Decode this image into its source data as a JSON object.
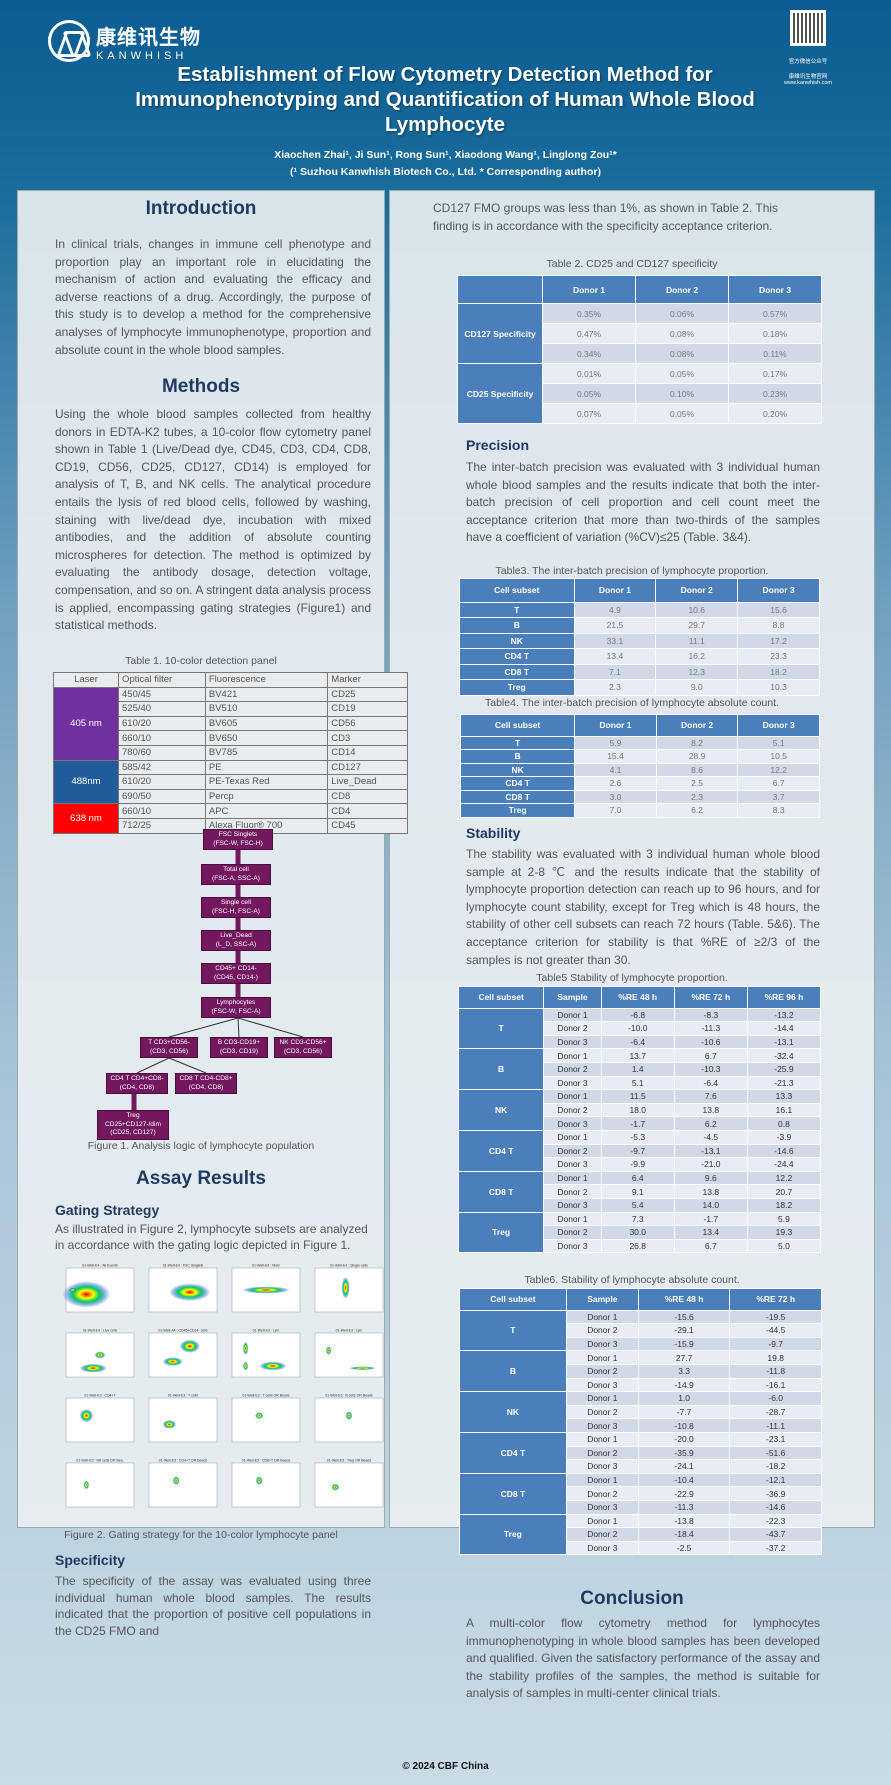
{
  "header": {
    "logo_cn": "康维讯生物",
    "logo_en": "KANWHISH",
    "qr_label1": "官方微信公众号",
    "qr_label2": "康维讯生物官网",
    "qr_url": "www.kanwhish.com",
    "title": "Establishment of Flow Cytometry Detection Method for Immunophenotyping and Quantification of Human Whole Blood Lymphocyte",
    "authors": "Xiaochen Zhai¹, Ji Sun¹, Rong Sun¹, Xiaodong Wang¹, Linglong Zou¹*",
    "affiliation": "(¹ Suzhou Kanwhish Biotech Co., Ltd. * Corresponding author)"
  },
  "intro": {
    "heading": "Introduction",
    "text": "In clinical trials, changes in immune cell phenotype and proportion play an important role in elucidating the mechanism of action and evaluating the efficacy and adverse reactions of a drug. Accordingly, the purpose of this study is to develop a method for the comprehensive analyses of lymphocyte immunophenotype, proportion and absolute count in the whole blood samples."
  },
  "methods": {
    "heading": "Methods",
    "text": "Using the whole blood samples collected from healthy donors in EDTA-K2 tubes, a 10-color flow cytometry panel shown in Table 1 (Live/Dead dye, CD45, CD3, CD4, CD8, CD19, CD56, CD25, CD127, CD14) is employed for analysis of T, B, and NK cells. The analytical procedure entails the lysis of red blood cells, followed by washing, staining with live/dead dye, incubation with mixed antibodies, and the addition of absolute counting microspheres for detection. The method is optimized by evaluating the antibody dosage, detection voltage, compensation, and so on. A stringent data analysis process is applied, encompassing gating strategies (Figure1) and statistical methods."
  },
  "table1": {
    "caption": "Table 1. 10-color detection panel",
    "headers": [
      "Laser",
      "Optical filter",
      "Fluorescence",
      "Marker"
    ],
    "groups": [
      {
        "laser": "405 nm",
        "color": "#7030a0",
        "rows": [
          [
            "450/45",
            "BV421",
            "CD25"
          ],
          [
            "525/40",
            "BV510",
            "CD19"
          ],
          [
            "610/20",
            "BV605",
            "CD56"
          ],
          [
            "660/10",
            "BV650",
            "CD3"
          ],
          [
            "780/60",
            "BV785",
            "CD14"
          ]
        ]
      },
      {
        "laser": "488nm",
        "color": "#1f5c99",
        "rows": [
          [
            "585/42",
            "PE",
            "CD127"
          ],
          [
            "610/20",
            "PE-Texas Red",
            "Live_Dead"
          ],
          [
            "690/50",
            "Percp",
            "CD8"
          ]
        ]
      },
      {
        "laser": "638 nm",
        "color": "#ff0000",
        "rows": [
          [
            "660/10",
            "APC",
            "CD4"
          ],
          [
            "712/25",
            "Alexa Fluor® 700",
            "CD45"
          ]
        ]
      }
    ]
  },
  "flowchart": {
    "nodes": [
      "FSC Singlets\n(FSC-W, FSC-H)",
      "Total cell\n(FSC-A, SSC-A)",
      "Single cell\n(FSC-H, FSC-A)",
      "Live_Dead\n(L_D, SSC-A)",
      "CD45+ CD14-\n(CD45, CD14-)",
      "Lymphocytes\n(FSC-W, FSC-A)",
      "T CD3+CD56-\n(CD3, CD56)",
      "B CD3-CD19+\n(CD3, CD19)",
      "NK CD3-CD56+\n(CD3, CD56)",
      "CD4 T CD4+CD8-\n(CD4, CD8)",
      "CD8 T CD4-CD8+\n(CD4, CD8)",
      "Treg CD25+CD127-/dim\n(CD25, CD127)"
    ],
    "caption": "Figure 1. Analysis logic of lymphocyte population"
  },
  "results": {
    "heading": "Assay Results",
    "gating_heading": "Gating Strategy",
    "gating_text": "As illustrated in Figure 2, lymphocyte subsets are analyzed in accordance with the gating logic depicted in Figure 1.",
    "figure2_caption": "Figure 2. Gating strategy for the 10-color lymphocyte panel",
    "figure2_panels": [
      "01-Well-E4 : All Events",
      "01-Well-E4 : FSC Singlets",
      "01-Well-E4 : Main",
      "01-Well-E4 : Single cells",
      "01-Well-E4 : Live cells",
      "01-Well-A4 : CD45+CD14- cells",
      "01-Well-E3 : Lym",
      "01-Well-E3 : Lym",
      "01-Well-E3 : CD4+T",
      "01-Well-E3 : T cells",
      "01-Well-E3 : T cells OR Beads",
      "01-Well-E3 : B cells OR Beads",
      "01-Well-E3 : NK cells OR Bea.",
      "01-Well-E3 : CD4+T OR Beads",
      "01-Well-E3 : CD8+T OR Beads",
      "01-Well-E3 : Treg OR Beads"
    ],
    "specificity_heading": "Specificity",
    "specificity_text": "The specificity of the assay was evaluated using three individual human whole blood samples. The results indicated that the proportion of positive cell populations in the CD25 FMO and",
    "specificity_cont": "CD127 FMO groups was less than 1%, as shown in Table 2. This finding is in accordance with the specificity acceptance criterion."
  },
  "table2": {
    "caption": "Table 2. CD25 and CD127 specificity",
    "headers": [
      "",
      "Donor 1",
      "Donor 2",
      "Donor 3"
    ],
    "groups": [
      {
        "label": "CD127 Specificity",
        "rows": [
          [
            "0.35%",
            "0.06%",
            "0.57%"
          ],
          [
            "0.47%",
            "0.08%",
            "0.18%"
          ],
          [
            "0.34%",
            "0.08%",
            "0.11%"
          ]
        ]
      },
      {
        "label": "CD25 Specificity",
        "rows": [
          [
            "0.01%",
            "0.05%",
            "0.17%"
          ],
          [
            "0.05%",
            "0.10%",
            "0.23%"
          ],
          [
            "0.07%",
            "0.05%",
            "0.20%"
          ]
        ]
      }
    ]
  },
  "precision": {
    "heading": "Precision",
    "text": "The inter-batch precision was evaluated with 3 individual human whole blood samples and the results indicate that both the inter-batch precision of cell proportion and cell count meet the acceptance criterion that more than two-thirds of the samples have a coefficient of variation (%CV)≤25 (Table. 3&4)."
  },
  "table3": {
    "caption": "Table3. The inter-batch precision of lymphocyte proportion.",
    "headers": [
      "Cell subset",
      "Donor 1",
      "Donor 2",
      "Donor 3"
    ],
    "rows": [
      [
        "T",
        "4.9",
        "10.6",
        "15.6"
      ],
      [
        "B",
        "21.5",
        "29.7",
        "8.8"
      ],
      [
        "NK",
        "33.1",
        "11.1",
        "17.2"
      ],
      [
        "CD4 T",
        "13.4",
        "16.2",
        "23.3"
      ],
      [
        "CD8 T",
        "7.1",
        "12.3",
        "18.2"
      ],
      [
        "Treg",
        "2.3",
        "9.0",
        "10.3"
      ]
    ]
  },
  "table4": {
    "caption": "Table4. The inter-batch precision of lymphocyte absolute count.",
    "headers": [
      "Cell subset",
      "Donor 1",
      "Donor 2",
      "Donor 3"
    ],
    "rows": [
      [
        "T",
        "5.9",
        "8.2",
        "5.1"
      ],
      [
        "B",
        "15.4",
        "28.9",
        "10.5"
      ],
      [
        "NK",
        "4.1",
        "8.6",
        "12.2"
      ],
      [
        "CD4 T",
        "2.6",
        "2.5",
        "6.7"
      ],
      [
        "CD8 T",
        "3.0",
        "2.3",
        "3.7"
      ],
      [
        "Treg",
        "7.0",
        "6.2",
        "8.3"
      ]
    ]
  },
  "stability": {
    "heading": "Stability",
    "text": "The stability was evaluated with 3 individual human whole blood sample at 2-8 ℃ and the results indicate that the stability of lymphocyte proportion detection can reach up to 96 hours, and for lymphocyte count stability, except for Treg which is 48 hours, the stability of other cell subsets can reach 72 hours (Table. 5&6). The acceptance criterion for stability is that %RE of ≥2/3 of the samples is not greater than 30."
  },
  "table5": {
    "caption": "Table5 Stability of lymphocyte proportion.",
    "headers": [
      "Cell subset",
      "Sample",
      "%RE 48 h",
      "%RE 72 h",
      "%RE 96 h"
    ],
    "groups": [
      {
        "label": "T",
        "rows": [
          [
            "Donor 1",
            "-6.8",
            "-8.3",
            "-13.2"
          ],
          [
            "Donor 2",
            "-10.0",
            "-11.3",
            "-14.4"
          ],
          [
            "Donor 3",
            "-6.4",
            "-10.6",
            "-13.1"
          ]
        ]
      },
      {
        "label": "B",
        "rows": [
          [
            "Donor 1",
            "13.7",
            "6.7",
            "-32.4"
          ],
          [
            "Donor 2",
            "1.4",
            "-10.3",
            "-25.9"
          ],
          [
            "Donor 3",
            "5.1",
            "-6.4",
            "-21.3"
          ]
        ]
      },
      {
        "label": "NK",
        "rows": [
          [
            "Donor 1",
            "11.5",
            "7.6",
            "13.3"
          ],
          [
            "Donor 2",
            "18.0",
            "13.8",
            "16.1"
          ],
          [
            "Donor 3",
            "-1.7",
            "6.2",
            "0.8"
          ]
        ]
      },
      {
        "label": "CD4 T",
        "rows": [
          [
            "Donor 1",
            "-5.3",
            "-4.5",
            "-3.9"
          ],
          [
            "Donor 2",
            "-9.7",
            "-13.1",
            "-14.6"
          ],
          [
            "Donor 3",
            "-9.9",
            "-21.0",
            "-24.4"
          ]
        ]
      },
      {
        "label": "CD8 T",
        "rows": [
          [
            "Donor 1",
            "6.4",
            "9.6",
            "12.2"
          ],
          [
            "Donor 2",
            "9.1",
            "13.8",
            "20.7"
          ],
          [
            "Donor 3",
            "5.4",
            "14.0",
            "18.2"
          ]
        ]
      },
      {
        "label": "Treg",
        "rows": [
          [
            "Donor 1",
            "7.3",
            "-1.7",
            "5.9"
          ],
          [
            "Donor 2",
            "30.0",
            "13.4",
            "19.3"
          ],
          [
            "Donor 3",
            "26.8",
            "6.7",
            "5.0"
          ]
        ]
      }
    ]
  },
  "table6": {
    "caption": "Table6. Stability of lymphocyte absolute count.",
    "headers": [
      "Cell subset",
      "Sample",
      "%RE 48 h",
      "%RE 72 h"
    ],
    "groups": [
      {
        "label": "T",
        "rows": [
          [
            "Donor 1",
            "-15.6",
            "-19.5"
          ],
          [
            "Donor 2",
            "-29.1",
            "-44.5"
          ],
          [
            "Donor 3",
            "-15.9",
            "-9.7"
          ]
        ]
      },
      {
        "label": "B",
        "rows": [
          [
            "Donor 1",
            "27.7",
            "19.8"
          ],
          [
            "Donor 2",
            "3.3",
            "-11.8"
          ],
          [
            "Donor 3",
            "-14.9",
            "-16.1"
          ]
        ]
      },
      {
        "label": "NK",
        "rows": [
          [
            "Donor 1",
            "1.0",
            "-6.0"
          ],
          [
            "Donor 2",
            "-7.7",
            "-28.7"
          ],
          [
            "Donor 3",
            "-10.8",
            "-11.1"
          ]
        ]
      },
      {
        "label": "CD4 T",
        "rows": [
          [
            "Donor 1",
            "-20.0",
            "-23.1"
          ],
          [
            "Donor 2",
            "-35.9",
            "-51.6"
          ],
          [
            "Donor 3",
            "-24.1",
            "-18.2"
          ]
        ]
      },
      {
        "label": "CD8 T",
        "rows": [
          [
            "Donor 1",
            "-10.4",
            "-12.1"
          ],
          [
            "Donor 2",
            "-22.9",
            "-36.9"
          ],
          [
            "Donor 3",
            "-11.3",
            "-14.6"
          ]
        ]
      },
      {
        "label": "Treg",
        "rows": [
          [
            "Donor 1",
            "-13.8",
            "-22.3"
          ],
          [
            "Donor 2",
            "-18.4",
            "-43.7"
          ],
          [
            "Donor 3",
            "-2.5",
            "-37.2"
          ]
        ]
      }
    ]
  },
  "conclusion": {
    "heading": "Conclusion",
    "text": "A multi-color flow cytometry method for lymphocytes immunophenotyping in whole blood samples has been developed and qualified. Given the satisfactory performance of the assay and the stability profiles of the samples, the method is suitable for analysis of samples in multi-center clinical trials."
  },
  "footer": "© 2024 CBF China",
  "colors": {
    "header_blue": "#0b5d92",
    "table_blue": "#4a7fbc",
    "flow_purple": "#73175f",
    "heading": "#1f3a5f"
  }
}
